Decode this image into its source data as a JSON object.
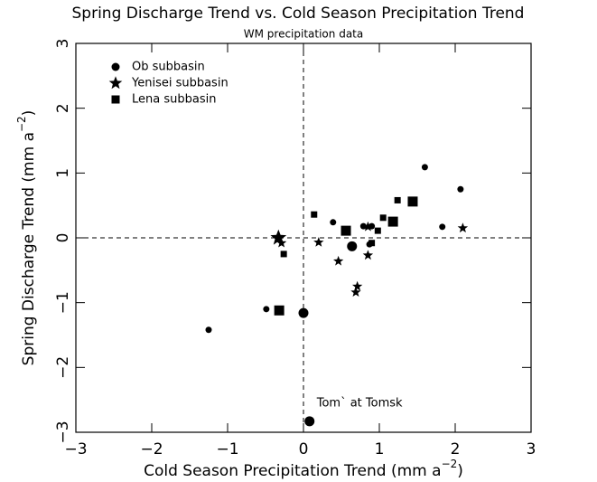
{
  "chart_data": {
    "type": "scatter",
    "title": "Spring Discharge Trend vs. Cold Season Precipitation Trend",
    "subtitle": "WM precipitation data",
    "xlabel": [
      "Cold Season Precipitation Trend (mm a",
      "−2",
      ")"
    ],
    "ylabel": [
      "Spring Discharge Trend (mm a",
      "−2",
      ")"
    ],
    "xlim": [
      -3,
      3
    ],
    "ylim": [
      -3,
      3
    ],
    "xticks": [
      {
        "value": -3,
        "label": "−3"
      },
      {
        "value": -2,
        "label": "−2"
      },
      {
        "value": -1,
        "label": "−1"
      },
      0,
      1,
      2,
      3
    ],
    "yticks": [
      {
        "value": -3,
        "label": "−3"
      },
      {
        "value": -2,
        "label": "−2"
      },
      {
        "value": -1,
        "label": "−1"
      },
      0,
      1,
      2,
      3
    ],
    "zero_lines": true,
    "legend": "top-left",
    "series": [
      {
        "name": "Ob subbasin",
        "marker": "circle",
        "color": "#000000",
        "x": [
          -1.25,
          -0.49,
          0.0,
          0.08,
          0.39,
          0.64,
          0.79,
          0.87,
          0.9,
          1.6,
          1.83,
          2.07
        ],
        "values": [
          -1.42,
          -1.1,
          -1.16,
          -2.83,
          0.24,
          -0.13,
          0.18,
          -0.1,
          0.18,
          1.09,
          0.17,
          0.75
        ],
        "sizes": [
          "small",
          "small",
          "large",
          "large",
          "small",
          "large",
          "small",
          "small",
          "small",
          "small",
          "small",
          "small"
        ]
      },
      {
        "name": "Yenisei subbasin",
        "marker": "star",
        "color": "#000000",
        "x": [
          -0.33,
          -0.29,
          0.2,
          0.46,
          0.69,
          0.71,
          0.85,
          0.85,
          2.1
        ],
        "values": [
          0.0,
          -0.08,
          -0.07,
          -0.36,
          -0.84,
          -0.75,
          -0.27,
          0.17,
          0.15
        ],
        "sizes": [
          "large",
          "small",
          "small",
          "small",
          "small",
          "small",
          "small",
          "small",
          "small"
        ]
      },
      {
        "name": "Lena subbasin",
        "marker": "square",
        "color": "#000000",
        "x": [
          -0.32,
          -0.26,
          0.14,
          0.56,
          0.9,
          0.98,
          1.05,
          1.18,
          1.24,
          1.44
        ],
        "values": [
          -1.12,
          -0.25,
          0.36,
          0.11,
          -0.08,
          0.11,
          0.31,
          0.25,
          0.58,
          0.56
        ],
        "sizes": [
          "large",
          "small",
          "small",
          "large",
          "small",
          "small",
          "small",
          "large",
          "small",
          "large"
        ]
      }
    ],
    "annotations": [
      {
        "text": "Tom` at Tomsk",
        "x": 0.08,
        "y": -2.83
      }
    ]
  }
}
